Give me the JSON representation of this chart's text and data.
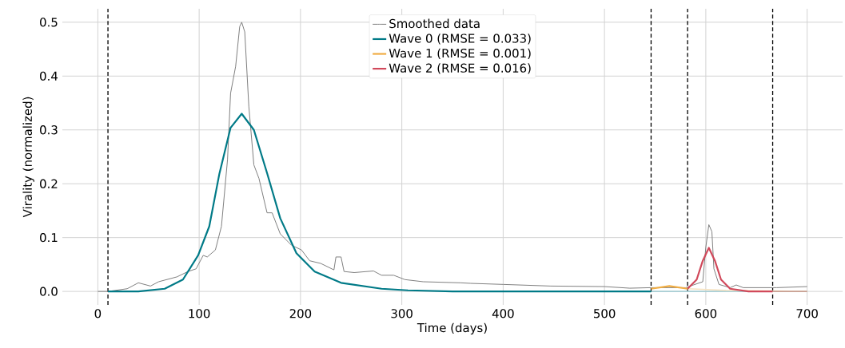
{
  "chart_data": {
    "type": "line",
    "xlabel": "Time (days)",
    "ylabel": "Virality (normalized)",
    "xlim": [
      -35,
      735
    ],
    "ylim": [
      -0.025,
      0.525
    ],
    "xticks": [
      0,
      100,
      200,
      300,
      400,
      500,
      600,
      700
    ],
    "yticks": [
      {
        "value": 0,
        "label": "0.0"
      },
      {
        "value": 0.1,
        "label": "0.1"
      },
      {
        "value": 0.2,
        "label": "0.2"
      },
      {
        "value": 0.3,
        "label": "0.3"
      },
      {
        "value": 0.4,
        "label": "0.4"
      },
      {
        "value": 0.5,
        "label": "0.5"
      }
    ],
    "grid": true,
    "legend": "top",
    "series": [
      {
        "name": "Smoothed data",
        "color": "#808080",
        "x": [
          0,
          10,
          29,
          40,
          52,
          60,
          78,
          89,
          97,
          104,
          108,
          116,
          122,
          128,
          131,
          136,
          140,
          142,
          145,
          149,
          154,
          159,
          167,
          172,
          180,
          191,
          201,
          209,
          220,
          233,
          235,
          240,
          243,
          253,
          272,
          280,
          292,
          303,
          321,
          358,
          368,
          400,
          447,
          500,
          525,
          546,
          580,
          597,
          600,
          603,
          606,
          608,
          613,
          624,
          630,
          637,
          670,
          700
        ],
        "values": [
          0,
          0,
          0.005,
          0.016,
          0.01,
          0.018,
          0.027,
          0.037,
          0.042,
          0.067,
          0.064,
          0.077,
          0.121,
          0.245,
          0.368,
          0.418,
          0.492,
          0.5,
          0.482,
          0.344,
          0.235,
          0.21,
          0.146,
          0.146,
          0.107,
          0.086,
          0.077,
          0.057,
          0.052,
          0.04,
          0.064,
          0.064,
          0.037,
          0.035,
          0.038,
          0.03,
          0.03,
          0.022,
          0.018,
          0.016,
          0.015,
          0.013,
          0.01,
          0.009,
          0.006,
          0.007,
          0.007,
          0.018,
          0.082,
          0.124,
          0.111,
          0.042,
          0.013,
          0.007,
          0.012,
          0.007,
          0.007,
          0.009
        ]
      },
      {
        "color": "#a9cfd5",
        "x": [
          546,
          700
        ],
        "values": [
          0,
          0
        ]
      },
      {
        "color": "#f6e2c0",
        "x": [
          582,
          620,
          700
        ],
        "values": [
          0.005,
          0.002,
          0
        ]
      },
      {
        "color": "#c9a095",
        "x": [
          666,
          700
        ],
        "values": [
          0,
          0
        ]
      },
      {
        "name": "Wave 0 (RMSE = 0.033)",
        "color": "#007a87",
        "x": [
          10,
          40,
          66,
          84,
          99,
          110,
          120,
          131,
          142,
          154,
          167,
          180,
          196,
          214,
          240,
          280,
          306,
          350,
          546
        ],
        "values": [
          0,
          0,
          0.005,
          0.022,
          0.067,
          0.121,
          0.219,
          0.304,
          0.33,
          0.3,
          0.22,
          0.136,
          0.071,
          0.037,
          0.016,
          0.005,
          0.002,
          0,
          0
        ]
      },
      {
        "name": "Wave 1 (RMSE = 0.001)",
        "color": "#f0ad44",
        "x": [
          546,
          564,
          582
        ],
        "values": [
          0.005,
          0.01,
          0.005
        ]
      },
      {
        "name": "Wave 2 (RMSE = 0.016)",
        "color": "#d1495b",
        "x": [
          582,
          591,
          597,
          603,
          609,
          615,
          624,
          642,
          666
        ],
        "values": [
          0.005,
          0.022,
          0.057,
          0.081,
          0.057,
          0.022,
          0.005,
          0,
          0
        ]
      }
    ],
    "ref_lines": [
      {
        "axis": "x",
        "value": 10,
        "color": "#000000",
        "line_style": "dashed"
      },
      {
        "axis": "x",
        "value": 546,
        "color": "#000000",
        "line_style": "dashed"
      },
      {
        "axis": "x",
        "value": 582,
        "color": "#000000",
        "line_style": "dashed"
      },
      {
        "axis": "x",
        "value": 666,
        "color": "#000000",
        "line_style": "dashed"
      }
    ]
  }
}
